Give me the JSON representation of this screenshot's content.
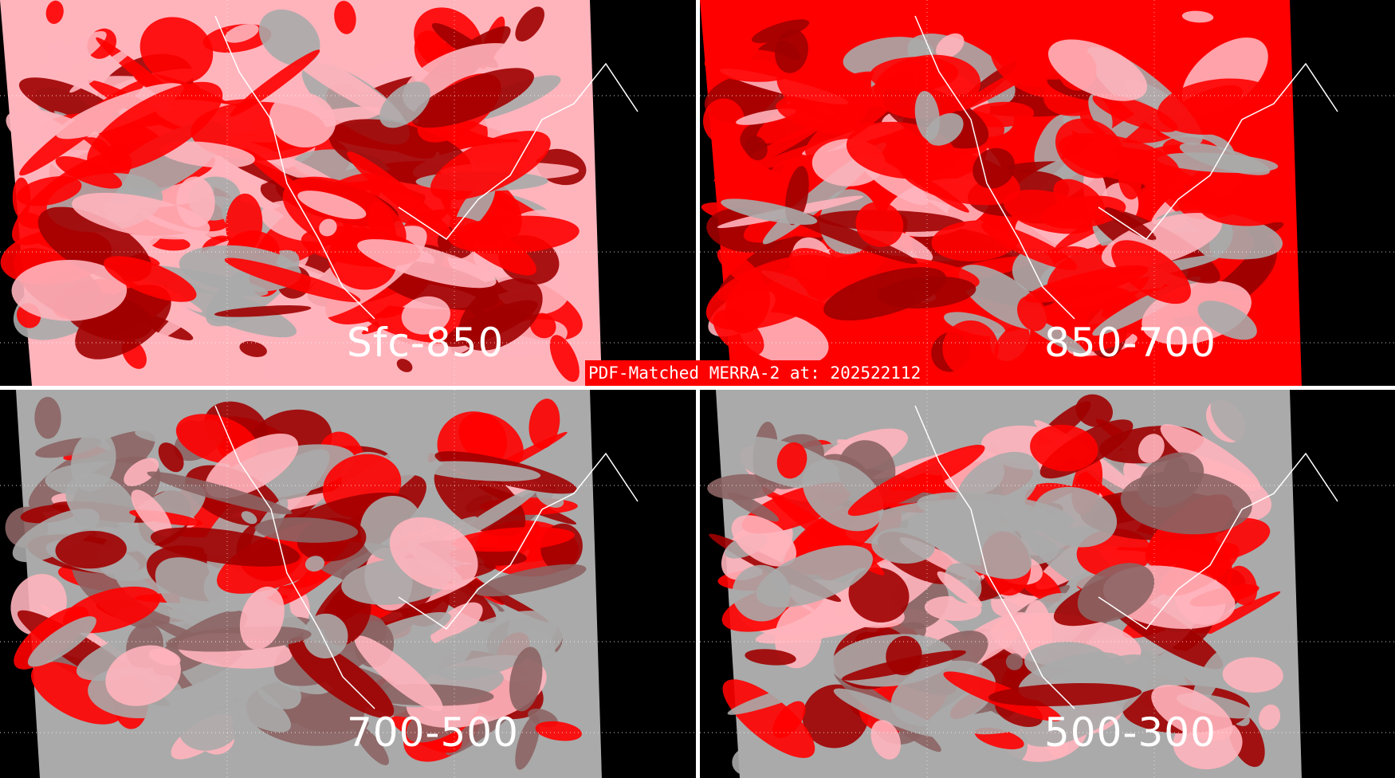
{
  "title": "PDF-Matched MERRA-2 at: 202522112",
  "panels": [
    {
      "label": "Sfc-850"
    },
    {
      "label": "850-700"
    },
    {
      "label": "700-500"
    },
    {
      "label": "500-300"
    }
  ],
  "colors": {
    "background": "#000000",
    "category_gray": "#aaaaaa",
    "category_brown": "#8c6464",
    "category_darkred": "#a00000",
    "category_red": "#ff0000",
    "category_pink": "#ffb4bc",
    "coastlines": "#ffffff",
    "title_box": "#ff0000"
  }
}
